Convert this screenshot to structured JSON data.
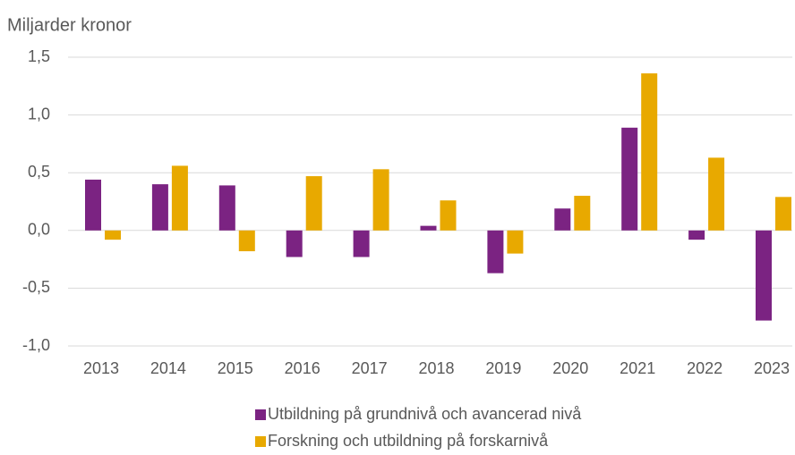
{
  "chart_data": {
    "type": "bar",
    "y_label": "Miljarder kronor",
    "categories": [
      "2013",
      "2014",
      "2015",
      "2016",
      "2017",
      "2018",
      "2019",
      "2020",
      "2021",
      "2022",
      "2023"
    ],
    "series": [
      {
        "name": "Utbildning på grundnivå och avancerad nivå",
        "color": "#7b2382",
        "values": [
          0.44,
          0.4,
          0.39,
          -0.23,
          -0.23,
          0.04,
          -0.37,
          0.19,
          0.89,
          -0.08,
          -0.78
        ]
      },
      {
        "name": "Forskning och utbildning på forskarnivå",
        "color": "#e8a900",
        "values": [
          -0.08,
          0.56,
          -0.18,
          0.47,
          0.53,
          0.26,
          -0.2,
          0.3,
          1.36,
          0.63,
          0.29
        ]
      }
    ],
    "ylim": [
      -1.0,
      1.5
    ],
    "yticks": [
      {
        "value": -1.0,
        "label": "-1,0"
      },
      {
        "value": -0.5,
        "label": "-0,5"
      },
      {
        "value": 0,
        "label": "0,0"
      },
      {
        "value": 0.5,
        "label": "0,5"
      },
      {
        "value": 1.0,
        "label": "1,0"
      },
      {
        "value": 1.5,
        "label": "1,5"
      }
    ],
    "grid": true,
    "legend": "bottom"
  }
}
